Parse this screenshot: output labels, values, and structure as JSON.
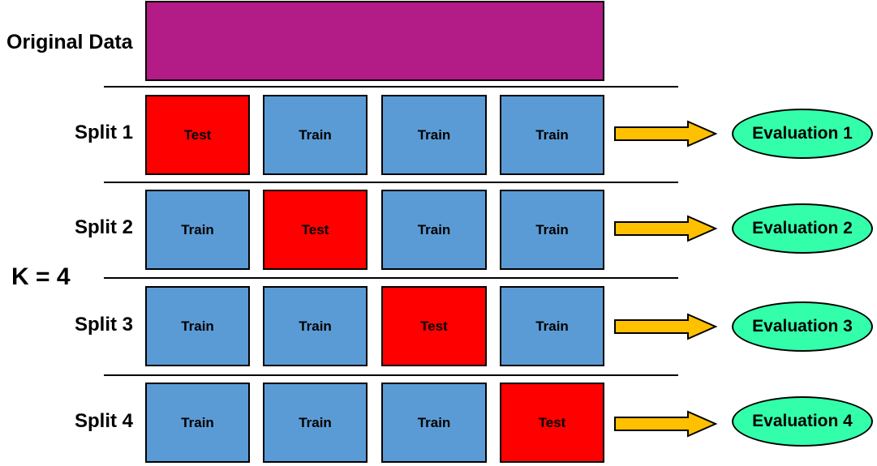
{
  "labels": {
    "original_data": "Original Data",
    "k": "K = 4"
  },
  "colors": {
    "original_data": "#b31b87",
    "train": "#5b9bd5",
    "test": "#ff0000",
    "evaluation": "#33ffaa",
    "arrow": "#ffc000"
  },
  "splits": [
    {
      "label": "Split 1",
      "folds": [
        "Test",
        "Train",
        "Train",
        "Train"
      ],
      "evaluation": "Evaluation 1"
    },
    {
      "label": "Split 2",
      "folds": [
        "Train",
        "Test",
        "Train",
        "Train"
      ],
      "evaluation": "Evaluation 2"
    },
    {
      "label": "Split 3",
      "folds": [
        "Train",
        "Train",
        "Test",
        "Train"
      ],
      "evaluation": "Evaluation 3"
    },
    {
      "label": "Split 4",
      "folds": [
        "Train",
        "Train",
        "Train",
        "Test"
      ],
      "evaluation": "Evaluation 4"
    }
  ]
}
